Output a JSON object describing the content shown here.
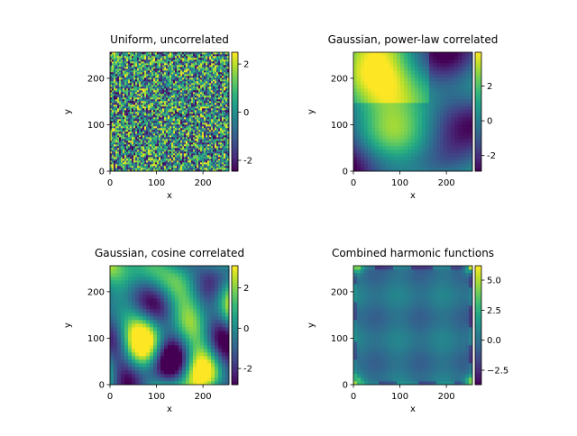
{
  "chart_data": [
    {
      "type": "image",
      "title": "Uniform, uncorrelated",
      "xlabel": "x",
      "ylabel": "y",
      "xlim": [
        0,
        256
      ],
      "ylim": [
        0,
        256
      ],
      "xticks": [
        0,
        100,
        200
      ],
      "yticks": [
        0,
        100,
        200
      ],
      "clim": [
        -2.45,
        2.49
      ],
      "cticks": [
        -2,
        0,
        2
      ],
      "colormap": "viridis"
    },
    {
      "type": "image",
      "title": "Gaussian, power-law correlated",
      "xlabel": "x",
      "ylabel": "y",
      "xlim": [
        0,
        256
      ],
      "ylim": [
        0,
        256
      ],
      "xticks": [
        0,
        100,
        200
      ],
      "yticks": [
        0,
        100,
        200
      ],
      "clim": [
        -2.9,
        3.95
      ],
      "cticks": [
        -2,
        0,
        2
      ],
      "colormap": "viridis"
    },
    {
      "type": "image",
      "title": "Gaussian, cosine correlated",
      "xlabel": "x",
      "ylabel": "y",
      "xlim": [
        0,
        256
      ],
      "ylim": [
        0,
        256
      ],
      "xticks": [
        0,
        100,
        200
      ],
      "yticks": [
        0,
        100,
        200
      ],
      "clim": [
        -2.8,
        3.1
      ],
      "cticks": [
        -2,
        0,
        2
      ],
      "colormap": "viridis"
    },
    {
      "type": "image",
      "title": "Combined harmonic functions",
      "xlabel": "x",
      "ylabel": "y",
      "xlim": [
        0,
        256
      ],
      "ylim": [
        0,
        256
      ],
      "xticks": [
        0,
        100,
        200
      ],
      "yticks": [
        0,
        100,
        200
      ],
      "clim": [
        -3.7,
        6.2
      ],
      "cticks": [
        {
          "value": -2.5,
          "label": "−2.5"
        },
        {
          "value": 0,
          "label": "0.0"
        },
        {
          "value": 2.5,
          "label": "2.5"
        },
        {
          "value": 5,
          "label": "5.0"
        }
      ],
      "colormap": "viridis"
    }
  ]
}
